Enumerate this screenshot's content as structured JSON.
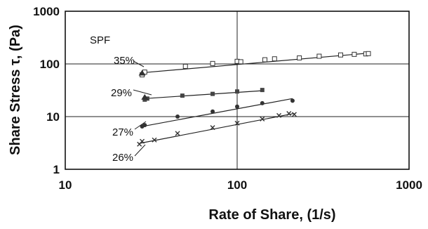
{
  "chart_data": {
    "type": "scatter",
    "title": "",
    "xlabel": "Rate of Share, (1/s)",
    "ylabel": "Share Stress τ, (Pa)",
    "x_scale": "log",
    "y_scale": "log",
    "xlim": [
      10,
      1000
    ],
    "ylim": [
      1,
      1000
    ],
    "x_ticks": [
      "10",
      "100",
      "1000"
    ],
    "y_ticks": [
      "1",
      "10",
      "100",
      "1000"
    ],
    "grid": true,
    "annotation": "SPF",
    "series": [
      {
        "name": "35%",
        "marker": "square-open",
        "points": [
          [
            28,
            62
          ],
          [
            29,
            70
          ],
          [
            50,
            90
          ],
          [
            72,
            102
          ],
          [
            100,
            112
          ],
          [
            105,
            110
          ],
          [
            145,
            120
          ],
          [
            165,
            125
          ],
          [
            230,
            130
          ],
          [
            300,
            140
          ],
          [
            400,
            148
          ],
          [
            480,
            152
          ],
          [
            560,
            155
          ],
          [
            580,
            157
          ]
        ],
        "fit": [
          [
            28,
            68
          ],
          [
            580,
            160
          ]
        ]
      },
      {
        "name": "29%",
        "marker": "square",
        "points": [
          [
            30,
            22
          ],
          [
            29,
            21
          ],
          [
            48,
            25
          ],
          [
            72,
            27
          ],
          [
            100,
            30
          ],
          [
            140,
            32
          ]
        ],
        "fit": [
          [
            29,
            22
          ],
          [
            140,
            31
          ]
        ]
      },
      {
        "name": "27%",
        "marker": "circle",
        "points": [
          [
            28,
            6.5
          ],
          [
            29,
            6.9
          ],
          [
            45,
            10
          ],
          [
            72,
            12.5
          ],
          [
            100,
            15.5
          ],
          [
            140,
            18
          ],
          [
            210,
            20
          ]
        ],
        "fit": [
          [
            28,
            6.5
          ],
          [
            210,
            22
          ]
        ]
      },
      {
        "name": "26%",
        "marker": "x",
        "points": [
          [
            27,
            3.0
          ],
          [
            28,
            3.4
          ],
          [
            33,
            3.6
          ],
          [
            45,
            4.8
          ],
          [
            72,
            6.2
          ],
          [
            100,
            7.5
          ],
          [
            140,
            9.0
          ],
          [
            175,
            10.5
          ],
          [
            200,
            11.5
          ],
          [
            215,
            11.0
          ]
        ],
        "fit": [
          [
            27,
            3.1
          ],
          [
            215,
            11.5
          ]
        ]
      }
    ]
  }
}
